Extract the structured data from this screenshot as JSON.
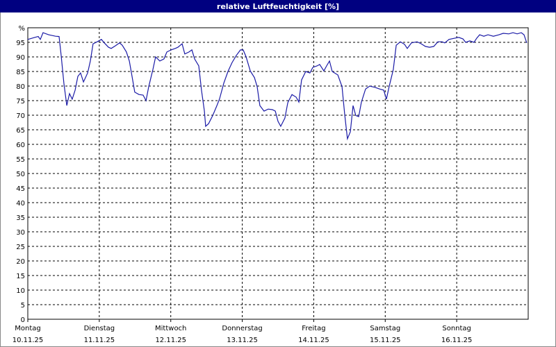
{
  "chart_data": {
    "type": "line",
    "title": "relative Luftfeuchtigkeit [%]",
    "color": "#1a1aa6",
    "grid": true,
    "xlim": [
      0,
      168
    ],
    "xticks": [
      {
        "value": 0,
        "label": "Montag",
        "date": "10.11.25"
      },
      {
        "value": 24,
        "label": "Dienstag",
        "date": "11.11.25"
      },
      {
        "value": 48,
        "label": "Mittwoch",
        "date": "12.11.25"
      },
      {
        "value": 72,
        "label": "Donnerstag",
        "date": "13.11.25"
      },
      {
        "value": 96,
        "label": "Freitag",
        "date": "14.11.25"
      },
      {
        "value": 120,
        "label": "Samstag",
        "date": "15.11.25"
      },
      {
        "value": 144,
        "label": "Sonntag",
        "date": "16.11.25"
      }
    ],
    "ylim": [
      0,
      100
    ],
    "yticks": [
      0,
      5,
      10,
      15,
      20,
      25,
      30,
      35,
      40,
      45,
      50,
      55,
      60,
      65,
      70,
      75,
      80,
      85,
      90,
      95,
      {
        "value": 100,
        "label": "%"
      }
    ],
    "x": [
      0,
      2.3,
      3.5,
      4.2,
      5.1,
      7,
      9.3,
      10.5,
      11.2,
      12.1,
      13.1,
      14,
      14.9,
      15.9,
      16.8,
      17.7,
      18.7,
      20.1,
      21,
      21.9,
      23.3,
      24.7,
      25.7,
      27.1,
      28,
      29.4,
      30.8,
      31.7,
      33.1,
      34.1,
      35,
      35.9,
      37.3,
      38.7,
      39.7,
      40.6,
      42,
      42.9,
      44.3,
      45.7,
      46.7,
      48.1,
      49.5,
      50.4,
      51.8,
      52.7,
      54.1,
      55.1,
      56,
      57.4,
      58.3,
      59.3,
      59.7,
      60.7,
      62.1,
      63.5,
      64.4,
      65.8,
      67.2,
      68.6,
      70,
      71.4,
      72.3,
      73.3,
      74.7,
      76.1,
      77,
      77.9,
      79.3,
      80.7,
      82.1,
      83.1,
      84,
      84.9,
      86.3,
      87.3,
      88.7,
      90.1,
      91,
      91.9,
      93.3,
      94.7,
      95.7,
      97.1,
      98,
      99.4,
      100.3,
      101.3,
      102.2,
      104.1,
      105.5,
      106.4,
      107.3,
      108.3,
      109.2,
      110.1,
      111.1,
      112,
      113.4,
      114.8,
      116.7,
      118.1,
      119.5,
      120.4,
      121.3,
      122.7,
      123.7,
      125.1,
      126.5,
      127.4,
      128.8,
      130.7,
      132.1,
      133.5,
      134.9,
      136.3,
      137.7,
      139.1,
      140,
      141.4,
      143.3,
      144.7,
      146.1,
      147,
      148.4,
      149.8,
      150.7,
      151.7,
      153.1,
      154.5,
      156.3,
      158.2,
      159.6,
      161.5,
      162.9,
      164.3,
      165.7,
      166.6,
      167.5
    ],
    "values": [
      96,
      96.7,
      97,
      96,
      98.3,
      97.6,
      97.1,
      97,
      90.5,
      81,
      73.3,
      77.4,
      75.5,
      78.6,
      83.3,
      84.5,
      81.4,
      84.5,
      88.6,
      94.5,
      95.2,
      96,
      94.8,
      93.3,
      92.9,
      93.8,
      94.8,
      94,
      91.7,
      88.6,
      83.3,
      77.9,
      77.1,
      76.9,
      75,
      79.8,
      85.7,
      90,
      88.6,
      89.3,
      91.7,
      92.4,
      92.9,
      93.3,
      94.5,
      91,
      91.7,
      92.4,
      89.3,
      86.9,
      78.6,
      71.4,
      66.2,
      67.1,
      69.9,
      73.3,
      75.7,
      81,
      85,
      88.1,
      90.5,
      92.4,
      92.4,
      90,
      85.2,
      82.9,
      79.8,
      73.3,
      71.4,
      72.1,
      71.9,
      71.4,
      67.9,
      66.2,
      69,
      74.3,
      77.1,
      76.2,
      74.5,
      82.1,
      85,
      84.5,
      86.4,
      86.9,
      87.4,
      85.2,
      86.9,
      88.6,
      85,
      83.8,
      79.8,
      70.2,
      61.9,
      64.3,
      73.3,
      69.9,
      69.5,
      74.5,
      79,
      80,
      79.5,
      79,
      78.6,
      75.5,
      79.8,
      85.7,
      94,
      95.2,
      94.3,
      92.9,
      94.8,
      95.2,
      94.5,
      93.6,
      93.3,
      93.6,
      95.2,
      95.2,
      94.8,
      96,
      96.4,
      96.7,
      96.2,
      95,
      95.5,
      95,
      96.4,
      97.6,
      97.1,
      97.6,
      97.1,
      97.6,
      98.1,
      97.9,
      98.3,
      97.9,
      98.3,
      97.6,
      94.8
    ]
  }
}
